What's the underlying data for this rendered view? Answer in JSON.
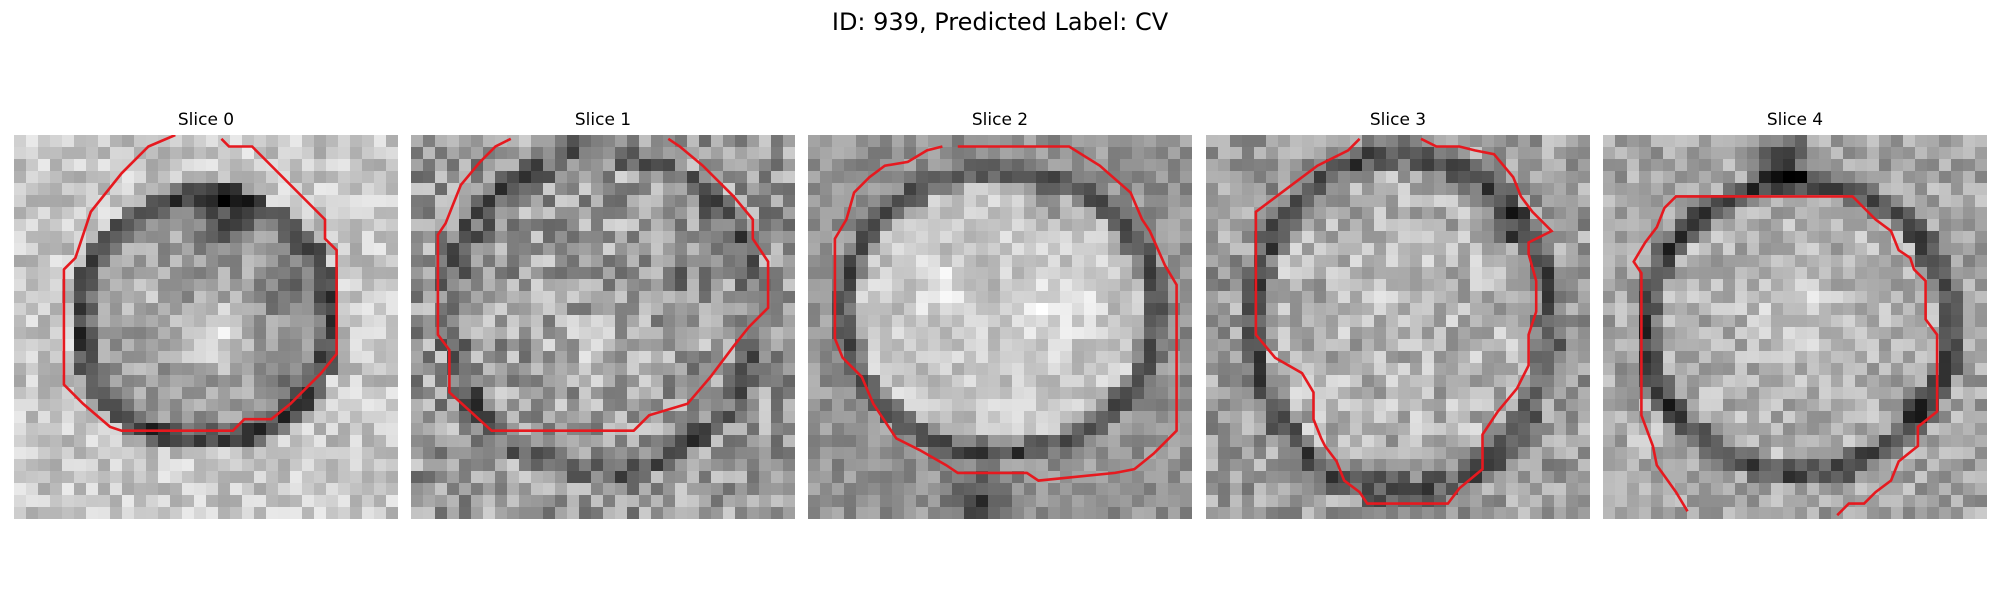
{
  "figure": {
    "title": "ID: 939, Predicted Label: CV"
  },
  "panels": [
    {
      "title": "Slice 0"
    },
    {
      "title": "Slice 1"
    },
    {
      "title": "Slice 2"
    },
    {
      "title": "Slice 3"
    },
    {
      "title": "Slice 4"
    }
  ],
  "style": {
    "contour_color": "#e6191f",
    "colormap": "grayscale"
  }
}
